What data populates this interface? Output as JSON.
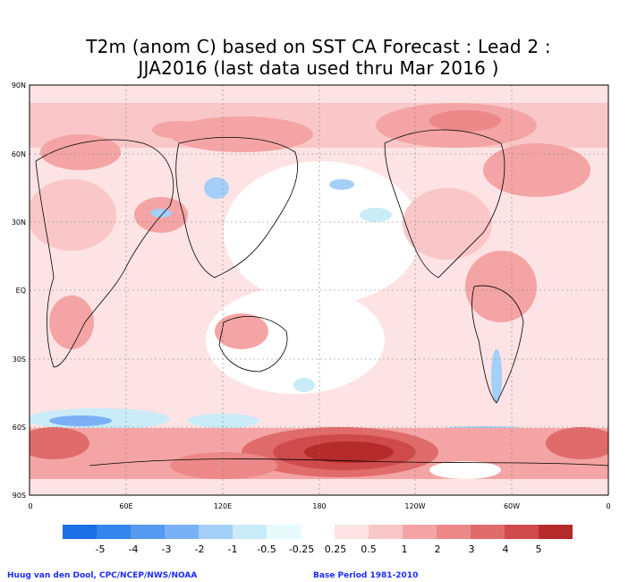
{
  "title": {
    "line1": "T2m (anom C) based on SST CA Forecast : Lead 2 :",
    "line2": "JJA2016 (last data used thru Mar 2016 )"
  },
  "axes": {
    "lat_labels": [
      "90N",
      "60N",
      "30N",
      "EQ",
      "30S",
      "60S",
      "90S"
    ],
    "lon_labels": [
      "0",
      "60E",
      "120E",
      "180",
      "120W",
      "60W",
      "0"
    ]
  },
  "colorbar": {
    "labels": [
      "-5",
      "-4",
      "-3",
      "-2",
      "-1",
      "-0.5",
      "-0.25",
      "0.25",
      "0.5",
      "1",
      "2",
      "3",
      "4",
      "5"
    ],
    "colors": [
      "#1a6fe6",
      "#3385ee",
      "#5599f0",
      "#7ab0f5",
      "#a4cff8",
      "#c9ecf8",
      "#e8fbfc",
      "#ffffff",
      "#fde3e3",
      "#f9c7c7",
      "#f4a4a4",
      "#ec8888",
      "#e06b6b",
      "#cf4b4b",
      "#b52a2a"
    ]
  },
  "footer": {
    "credit": "Huug van den Dool, CPC/NCEP/NWS/NOAA",
    "base_period": "Base Period 1981-2010"
  }
}
